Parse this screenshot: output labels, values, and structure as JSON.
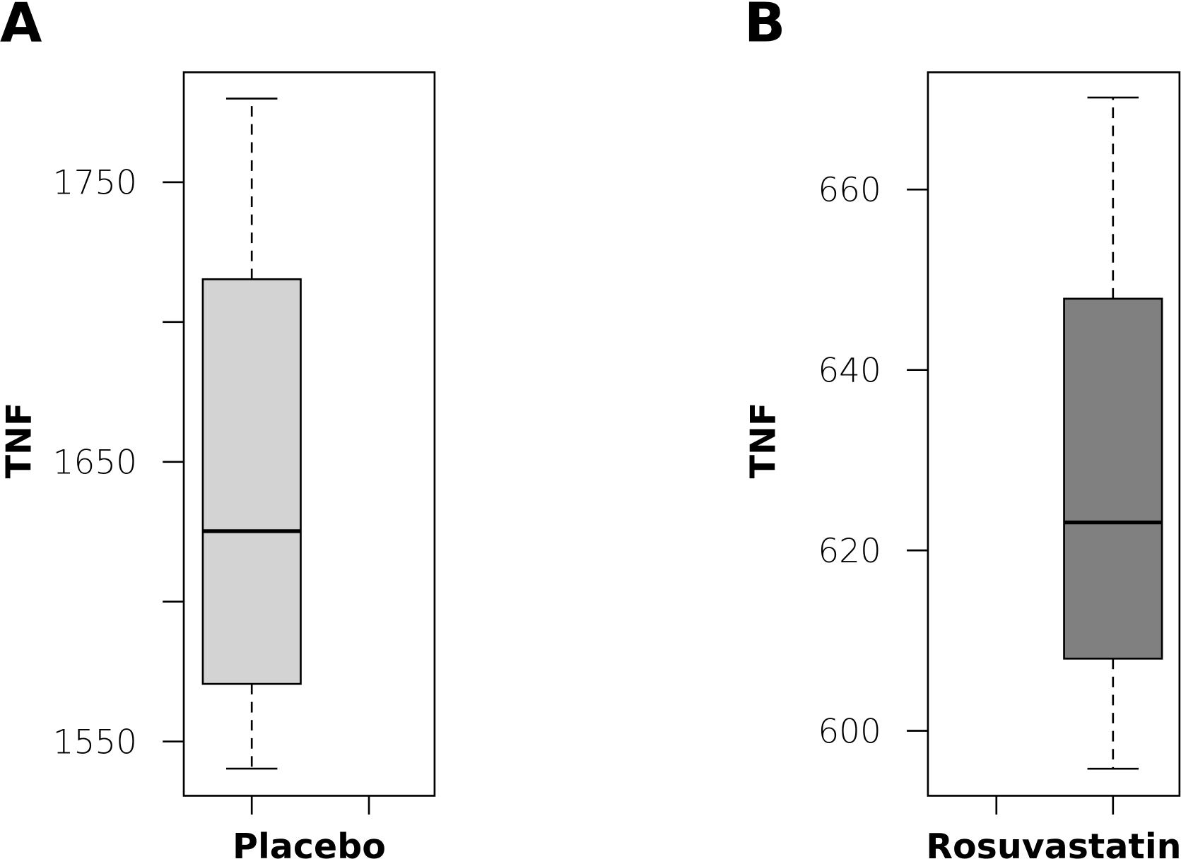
{
  "chart_data": [
    {
      "type": "box",
      "panel_label": "A",
      "ylabel": "TNF",
      "xlabel": "Placebo",
      "color": "#d3d3d3",
      "ylim": [
        1530.6,
        1789.3
      ],
      "yticks": [
        1550,
        1650,
        1750
      ],
      "minor_yticks": [
        1600,
        1700
      ],
      "xlim": [
        0.42,
        2.56
      ],
      "xticks": [
        1,
        2
      ],
      "position": 1,
      "stats": {
        "whisker_low": 1540.3,
        "q1": 1570.6,
        "median": 1625.2,
        "q3": 1715.3,
        "whisker_high": 1779.9
      }
    },
    {
      "type": "box",
      "panel_label": "B",
      "ylabel": "TNF",
      "xlabel": "Rosuvastatin",
      "color": "#808080",
      "ylim": [
        592.8,
        673.0
      ],
      "yticks": [
        600,
        620,
        640,
        660
      ],
      "minor_yticks": [],
      "xlim": [
        0.413,
        2.57
      ],
      "xticks": [
        1,
        2
      ],
      "position": 2,
      "stats": {
        "whisker_low": 595.8,
        "q1": 608.0,
        "median": 623.1,
        "q3": 647.9,
        "whisker_high": 670.2
      }
    }
  ]
}
